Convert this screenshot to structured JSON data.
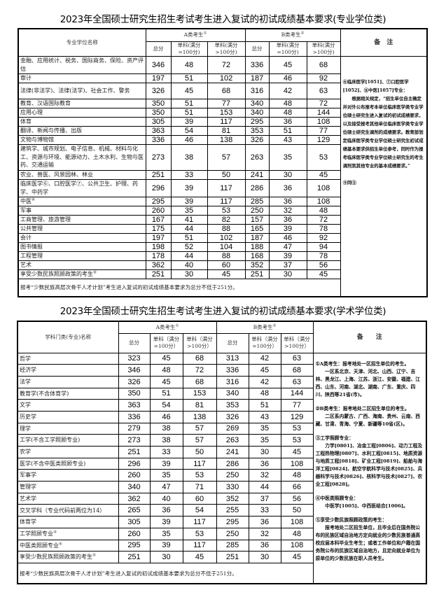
{
  "professional": {
    "title": "2023年全国硕士研究生招生考试考生进入复试的初试成绩基本要求(专业学位类)",
    "headers": {
      "name": "专业学位名称",
      "a_group": "A类考生",
      "a_mark": "①",
      "b_group": "B类考生",
      "b_mark": "②",
      "total": "总分",
      "single100": "单科(满分=100分)",
      "single_over100": "单科(满分>100分)",
      "notes": "备　注"
    },
    "rows": [
      {
        "name": "金融、应用统计、税务、国际商务、保险、资产评估",
        "mark": "",
        "a": [
          346,
          48,
          72
        ],
        "b": [
          336,
          45,
          68
        ]
      },
      {
        "name": "审计",
        "mark": "",
        "a": [
          197,
          51,
          102
        ],
        "b": [
          187,
          46,
          92
        ]
      },
      {
        "name": "法律(非法学)、法律(法学)、社会工作、警务",
        "mark": "",
        "a": [
          326,
          45,
          68
        ],
        "b": [
          316,
          42,
          63
        ]
      },
      {
        "name": "教育、汉语国际教育",
        "mark": "",
        "a": [
          350,
          51,
          77
        ],
        "b": [
          340,
          48,
          72
        ]
      },
      {
        "name": "应用心理",
        "mark": "",
        "a": [
          350,
          51,
          153
        ],
        "b": [
          340,
          48,
          144
        ]
      },
      {
        "name": "体育",
        "mark": "",
        "a": [
          305,
          39,
          117
        ],
        "b": [
          295,
          36,
          108
        ]
      },
      {
        "name": "翻译、新闻与传播、出版",
        "mark": "",
        "a": [
          363,
          54,
          81
        ],
        "b": [
          353,
          51,
          77
        ]
      },
      {
        "name": "文物与博物馆",
        "mark": "",
        "a": [
          336,
          46,
          138
        ],
        "b": [
          326,
          43,
          129
        ]
      },
      {
        "name": "建筑学、城市规划、电子信息、机械、材料与化工、资源与环境、能源动力、土木水利、生物与医药、交通运输",
        "mark": "",
        "a": [
          273,
          38,
          57
        ],
        "b": [
          263,
          35,
          53
        ]
      },
      {
        "name": "农业、兽医、风景园林、林业",
        "mark": "",
        "a": [
          251,
          33,
          50
        ],
        "b": [
          241,
          30,
          45
        ]
      },
      {
        "name": "临床医学⑥、口腔医学⑦、公共卫生、护理、药学、中药学",
        "mark": "",
        "a": [
          296,
          39,
          117
        ],
        "b": [
          286,
          36,
          108
        ]
      },
      {
        "name": "中医",
        "mark": "⑧",
        "a": [
          295,
          39,
          117
        ],
        "b": [
          285,
          36,
          108
        ]
      },
      {
        "name": "军事",
        "mark": "",
        "a": [
          260,
          35,
          53
        ],
        "b": [
          250,
          32,
          48
        ]
      },
      {
        "name": "工商管理、旅游管理",
        "mark": "",
        "a": [
          167,
          41,
          82
        ],
        "b": [
          157,
          36,
          72
        ]
      },
      {
        "name": "公共管理",
        "mark": "",
        "a": [
          175,
          44,
          88
        ],
        "b": [
          165,
          39,
          78
        ]
      },
      {
        "name": "会计",
        "mark": "",
        "a": [
          197,
          51,
          102
        ],
        "b": [
          187,
          46,
          92
        ]
      },
      {
        "name": "图书情报",
        "mark": "",
        "a": [
          198,
          52,
          104
        ],
        "b": [
          188,
          47,
          94
        ]
      },
      {
        "name": "工程管理",
        "mark": "",
        "a": [
          178,
          44,
          88
        ],
        "b": [
          168,
          39,
          78
        ]
      },
      {
        "name": "艺术",
        "mark": "",
        "a": [
          362,
          40,
          60
        ],
        "b": [
          352,
          37,
          56
        ]
      },
      {
        "name": "享受少数民族照顾政策的考生",
        "mark": "⑨",
        "a": [
          251,
          30,
          45
        ],
        "b": [
          251,
          30,
          45
        ]
      }
    ],
    "footer": "报考“少数民族高层次骨干人才计划”考生进入复试的初试成绩基本要求为总分不低于251分。",
    "notes": [
      {
        "head": "⑥临床医学[1051]、⑦口腔医学[1052]、⑧中医[1057]专业：",
        "body": "根据相关规定，“招生单位自主确定并对外公布报考本单位临床医学类专业学位硕士研究生进入复试的初试成绩要求，以及接受报考其他单位临床医学类专业学位硕士研究生调剂的成绩要求。教育部划定临床医学类专业学位硕士研究生初试成绩基本要求供招生单位参考，同时作为报考临床医学类专业学位硕士研究生的考生调剂到其他专业的基本成绩要求。”"
      },
      {
        "head": "⑨同⑤",
        "body": ""
      }
    ]
  },
  "academic": {
    "title": "2023年全国硕士研究生招生考试考生进入复试的初试成绩基本要求(学术学位类)",
    "headers": {
      "name": "学科门类(专业)名称",
      "a_group": "A类考生",
      "a_mark": "①",
      "b_group": "B类考生",
      "b_mark": "②",
      "total": "总分",
      "single100": "单科（满分=100分）",
      "single_over100": "单科（满分>100分）",
      "notes": "备　　注"
    },
    "rows": [
      {
        "name": "哲学",
        "mark": "",
        "a": [
          323,
          45,
          68
        ],
        "b": [
          313,
          42,
          63
        ]
      },
      {
        "name": "经济学",
        "mark": "",
        "a": [
          346,
          48,
          72
        ],
        "b": [
          336,
          45,
          68
        ]
      },
      {
        "name": "法学",
        "mark": "",
        "a": [
          326,
          45,
          68
        ],
        "b": [
          316,
          42,
          63
        ]
      },
      {
        "name": "教育学(不含体育学)",
        "mark": "",
        "a": [
          350,
          51,
          153
        ],
        "b": [
          340,
          48,
          144
        ]
      },
      {
        "name": "文学",
        "mark": "",
        "a": [
          363,
          54,
          81
        ],
        "b": [
          353,
          51,
          77
        ]
      },
      {
        "name": "历史学",
        "mark": "",
        "a": [
          336,
          46,
          138
        ],
        "b": [
          326,
          43,
          129
        ]
      },
      {
        "name": "理学",
        "mark": "",
        "a": [
          279,
          38,
          57
        ],
        "b": [
          269,
          35,
          53
        ]
      },
      {
        "name": "工学(不含工学照顾专业)",
        "mark": "",
        "a": [
          273,
          38,
          57
        ],
        "b": [
          263,
          35,
          53
        ]
      },
      {
        "name": "农学",
        "mark": "",
        "a": [
          251,
          33,
          50
        ],
        "b": [
          241,
          30,
          45
        ]
      },
      {
        "name": "医学(不含中医类照顾专业)",
        "mark": "",
        "a": [
          296,
          39,
          117
        ],
        "b": [
          286,
          36,
          108
        ]
      },
      {
        "name": "军事学",
        "mark": "",
        "a": [
          260,
          35,
          53
        ],
        "b": [
          250,
          32,
          48
        ]
      },
      {
        "name": "管理学",
        "mark": "",
        "a": [
          340,
          47,
          71
        ],
        "b": [
          330,
          44,
          66
        ]
      },
      {
        "name": "艺术学",
        "mark": "",
        "a": [
          362,
          40,
          60
        ],
        "b": [
          352,
          37,
          56
        ]
      },
      {
        "name": "交叉学科（专业代码前两位为14）",
        "mark": "",
        "a": [
          265,
          36,
          54
        ],
        "b": [
          255,
          33,
          50
        ]
      },
      {
        "name": "体育学",
        "mark": "",
        "a": [
          305,
          39,
          117
        ],
        "b": [
          295,
          36,
          108
        ]
      },
      {
        "name": "工学照顾专业",
        "mark": "③",
        "a": [
          260,
          35,
          53
        ],
        "b": [
          250,
          32,
          48
        ]
      },
      {
        "name": "中医类照顾专业",
        "mark": "④",
        "a": [
          295,
          39,
          117
        ],
        "b": [
          285,
          36,
          108
        ]
      },
      {
        "name": "享受少数民族照顾政策的考生",
        "mark": "⑤",
        "a": [
          251,
          30,
          45
        ],
        "b": [
          251,
          30,
          45
        ]
      }
    ],
    "footer": "报考“少数民族高层次骨干人才计划”考生进入复试的初试成绩基本要求为总分不低于251分。",
    "notes": [
      {
        "head": "①A类考生：报考地处一区招生单位的考生。",
        "body": "一区系北京、天津、河北、山西、辽宁、吉林、黑龙江、上海、江苏、浙江、安徽、福建、江西、山东、河南、湖北、湖南、广东、重庆、四川、陕西等21省(市)。"
      },
      {
        "head": "②B类考生：报考地处二区招生单位的考生。",
        "body": "二区系内蒙古、广西、海南、贵州、云南、西藏、甘肃、青海、宁夏、新疆等10省(区)。"
      },
      {
        "head": "③工学照顾专业：",
        "body": "力学[0801]、冶金工程[0806]、动力工程及工程热物理[0807]、水利工程[0815]、地质资源与地质工程[0818]、矿业工程[0819]、船舶与海洋工程[0824]、航空宇航科学与技术[0825]、兵器科学与技术[0826]、核科学与技术[0827]、农业工程[0828]。"
      },
      {
        "head": "④中医类照顾专业：",
        "body": "中医学[1005]、中西医结合[1006]。"
      },
      {
        "head": "⑤享受少数民族照顾政策的考生：",
        "body": "报考地处二区招生单位，且毕业后在国务院公布的民族区域自治地方定向就业的少数民族普通高校应届本科毕业生考生；或者工作单位和户籍在国务院公布的民族区域自治地方，且定向就业单位为原单位的少数民族在职人员考生。"
      }
    ]
  }
}
